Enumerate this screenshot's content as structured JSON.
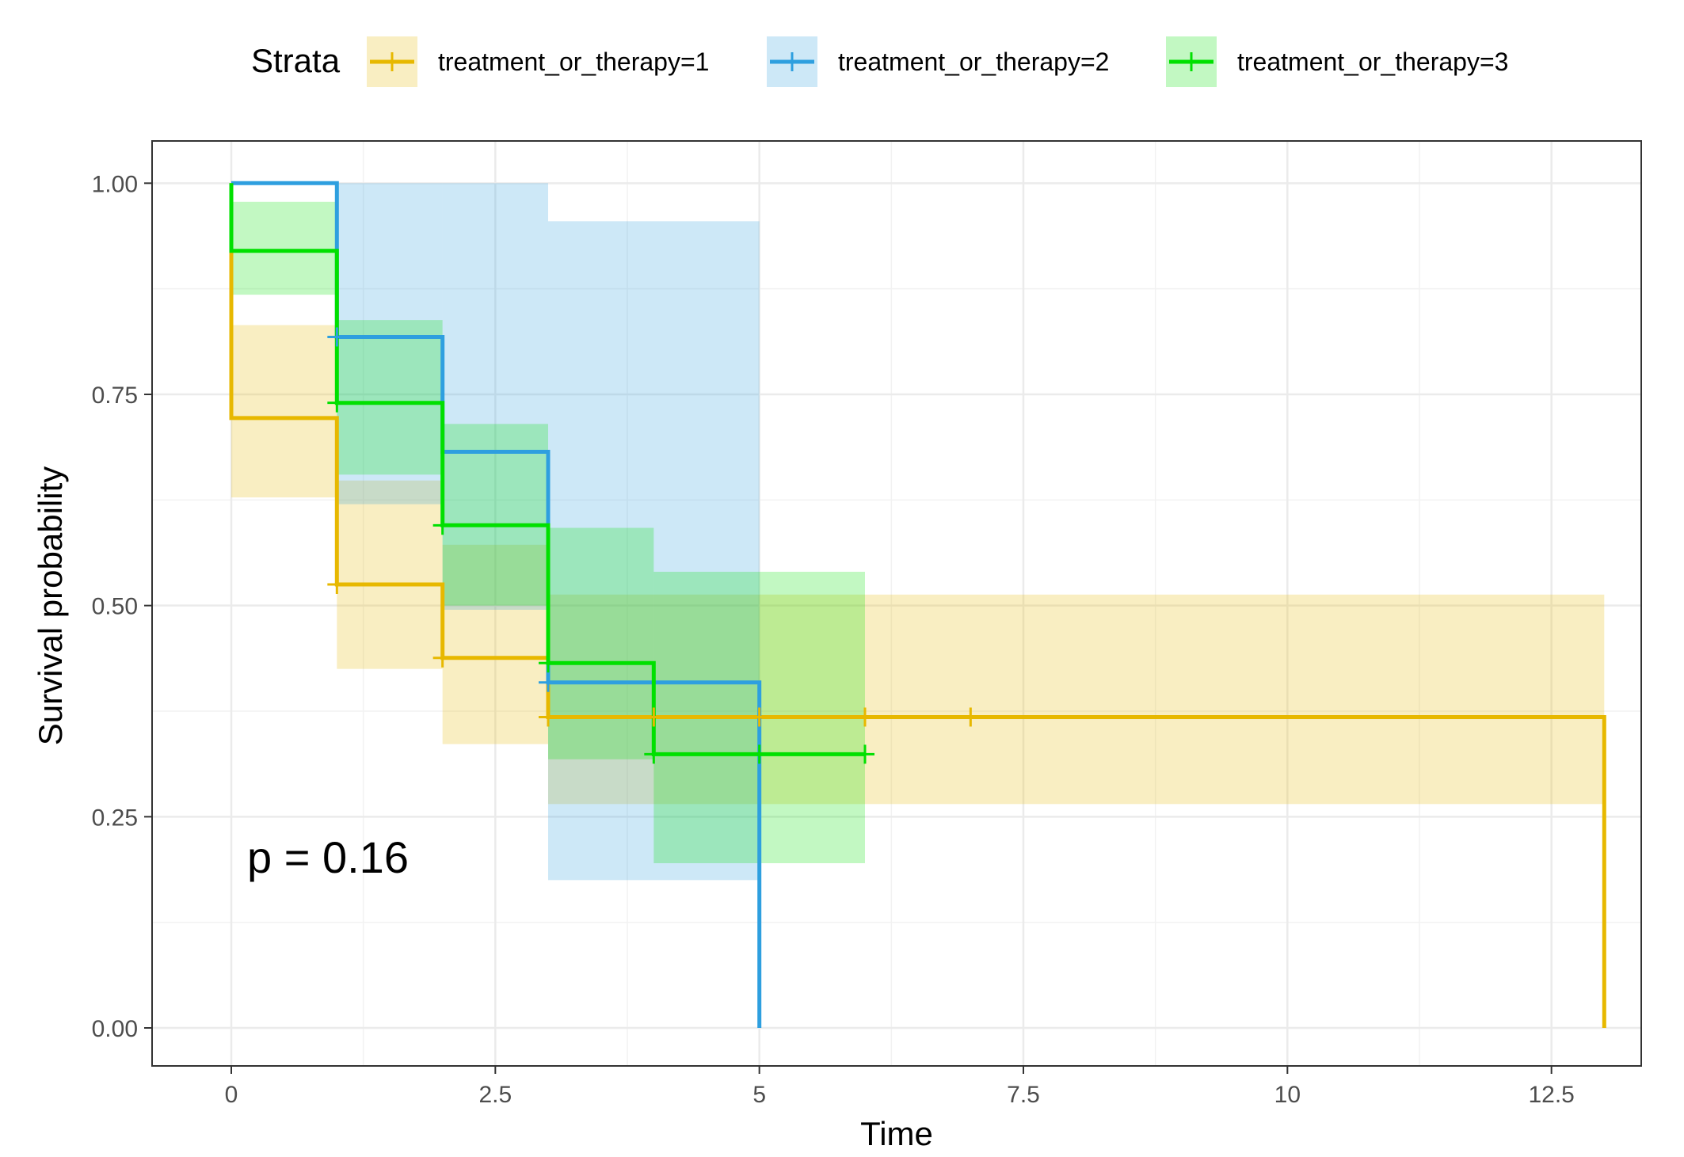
{
  "chart_data": {
    "type": "line",
    "subtype": "kaplan-meier-survival",
    "title": "",
    "xlabel": "Time",
    "ylabel": "Survival probability",
    "xlim": [
      -0.75,
      13.35
    ],
    "ylim": [
      -0.045,
      1.05
    ],
    "x_ticks": [
      0,
      2.5,
      5,
      7.5,
      10,
      12.5
    ],
    "x_tick_labels": [
      "0",
      "2.5",
      "5",
      "7.5",
      "10",
      "12.5"
    ],
    "y_ticks": [
      0,
      0.25,
      0.5,
      0.75,
      1
    ],
    "y_tick_labels": [
      "0.00",
      "0.25",
      "0.50",
      "0.75",
      "1.00"
    ],
    "grid": true,
    "legend": {
      "title": "Strata",
      "position": "top"
    },
    "annotation": "p = 0.16",
    "series": [
      {
        "name": "treatment_or_therapy=1",
        "color": "#E7B800",
        "steps": [
          [
            0,
            1.0
          ],
          [
            0,
            0.722
          ],
          [
            1,
            0.722
          ],
          [
            1,
            0.525
          ],
          [
            2,
            0.525
          ],
          [
            2,
            0.438
          ],
          [
            3,
            0.438
          ],
          [
            3,
            0.368
          ],
          [
            13,
            0.368
          ],
          [
            13,
            0.0
          ]
        ],
        "ci": [
          {
            "x0": 0,
            "x1": 1,
            "lo": 0.628,
            "hi": 0.832
          },
          {
            "x0": 1,
            "x1": 2,
            "lo": 0.425,
            "hi": 0.648
          },
          {
            "x0": 2,
            "x1": 3,
            "lo": 0.336,
            "hi": 0.572
          },
          {
            "x0": 3,
            "x1": 13,
            "lo": 0.265,
            "hi": 0.513
          }
        ],
        "censor": [
          [
            1,
            0.525
          ],
          [
            2,
            0.438
          ],
          [
            3,
            0.368
          ],
          [
            4,
            0.368
          ],
          [
            5,
            0.368
          ],
          [
            6,
            0.368
          ],
          [
            7,
            0.368
          ]
        ]
      },
      {
        "name": "treatment_or_therapy=2",
        "color": "#2E9FDF",
        "steps": [
          [
            0,
            1.0
          ],
          [
            1,
            1.0
          ],
          [
            1,
            0.818
          ],
          [
            2,
            0.818
          ],
          [
            2,
            0.682
          ],
          [
            3,
            0.682
          ],
          [
            3,
            0.409
          ],
          [
            5,
            0.409
          ],
          [
            5,
            0.0
          ]
        ],
        "ci": [
          {
            "x0": 1,
            "x1": 2,
            "lo": 0.62,
            "hi": 1.0
          },
          {
            "x0": 2,
            "x1": 3,
            "lo": 0.495,
            "hi": 1.0
          },
          {
            "x0": 3,
            "x1": 5,
            "lo": 0.175,
            "hi": 0.955
          }
        ],
        "censor": [
          [
            1,
            0.818
          ],
          [
            3,
            0.409
          ]
        ]
      },
      {
        "name": "treatment_or_therapy=3",
        "color": "#00E000",
        "steps": [
          [
            0,
            1.0
          ],
          [
            0,
            0.92
          ],
          [
            1,
            0.92
          ],
          [
            1,
            0.74
          ],
          [
            2,
            0.74
          ],
          [
            2,
            0.595
          ],
          [
            3,
            0.595
          ],
          [
            3,
            0.432
          ],
          [
            4,
            0.432
          ],
          [
            4,
            0.324
          ],
          [
            6,
            0.324
          ]
        ],
        "ci": [
          {
            "x0": 0,
            "x1": 1,
            "lo": 0.868,
            "hi": 0.978
          },
          {
            "x0": 1,
            "x1": 2,
            "lo": 0.655,
            "hi": 0.838
          },
          {
            "x0": 2,
            "x1": 3,
            "lo": 0.5,
            "hi": 0.715
          },
          {
            "x0": 3,
            "x1": 4,
            "lo": 0.318,
            "hi": 0.592
          },
          {
            "x0": 4,
            "x1": 6,
            "lo": 0.195,
            "hi": 0.54
          }
        ],
        "censor": [
          [
            1,
            0.74
          ],
          [
            2,
            0.595
          ],
          [
            3,
            0.432
          ],
          [
            4,
            0.324
          ],
          [
            5,
            0.324
          ],
          [
            6,
            0.324
          ]
        ]
      }
    ]
  }
}
